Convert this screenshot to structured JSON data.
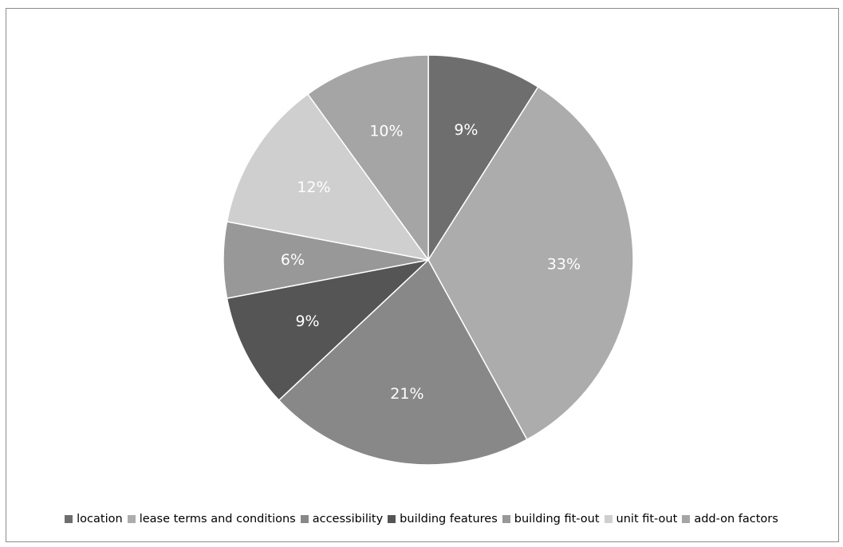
{
  "chart_data": {
    "type": "pie",
    "title": "",
    "legend_position": "bottom",
    "slices": [
      {
        "name": "location",
        "value": 9,
        "label": "9%",
        "color": "#6e6e6e"
      },
      {
        "name": "lease terms and conditions",
        "value": 33,
        "label": "33%",
        "color": "#acacac"
      },
      {
        "name": "accessibility",
        "value": 21,
        "label": "21%",
        "color": "#888888"
      },
      {
        "name": "building features",
        "value": 9,
        "label": "9%",
        "color": "#555555"
      },
      {
        "name": "building fit-out",
        "value": 6,
        "label": "6%",
        "color": "#989898"
      },
      {
        "name": "unit fit-out",
        "value": 12,
        "label": "12%",
        "color": "#cfcfcf"
      },
      {
        "name": "add-on factors",
        "value": 10,
        "label": "10%",
        "color": "#a5a5a5"
      }
    ]
  }
}
